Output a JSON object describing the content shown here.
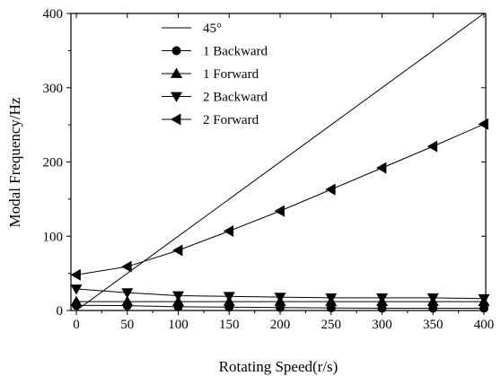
{
  "chart_data": {
    "type": "line",
    "xlabel": "Rotating Speed(r/s)",
    "ylabel": "Modal Frequency/Hz",
    "xlim": [
      0,
      400
    ],
    "ylim": [
      0,
      400
    ],
    "x_ticks": [
      0,
      50,
      100,
      150,
      200,
      250,
      300,
      350,
      400
    ],
    "y_ticks": [
      0,
      100,
      200,
      300,
      400
    ],
    "grid": false,
    "legend_position": "top-left",
    "series": [
      {
        "name": "45°",
        "marker": "none",
        "x": [
          0,
          400
        ],
        "y": [
          0,
          400
        ]
      },
      {
        "name": "1 Backward",
        "marker": "circle",
        "x": [
          0,
          50,
          100,
          150,
          200,
          250,
          300,
          350,
          400
        ],
        "y": [
          7,
          6.5,
          5,
          4.5,
          4,
          3.5,
          3,
          3,
          3
        ]
      },
      {
        "name": "1 Forward",
        "marker": "triangle-up",
        "x": [
          0,
          50,
          100,
          150,
          200,
          250,
          300,
          350,
          400
        ],
        "y": [
          12,
          12,
          12,
          12,
          12,
          12,
          12,
          12,
          12
        ]
      },
      {
        "name": "2 Backward",
        "marker": "triangle-down",
        "x": [
          0,
          50,
          100,
          150,
          200,
          250,
          300,
          350,
          400
        ],
        "y": [
          29,
          24,
          20,
          19,
          18,
          17,
          17,
          17,
          16
        ]
      },
      {
        "name": "2 Forward",
        "marker": "triangle-left",
        "x": [
          0,
          50,
          100,
          150,
          200,
          250,
          300,
          350,
          400
        ],
        "y": [
          48,
          59,
          81,
          107,
          134,
          163,
          192,
          221,
          251
        ]
      }
    ]
  }
}
